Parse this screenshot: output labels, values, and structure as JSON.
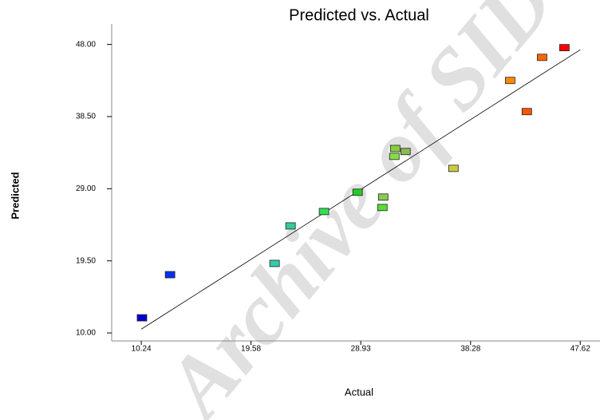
{
  "chart_data": {
    "type": "scatter",
    "title": "Predicted vs. Actual",
    "xlabel": "Actual",
    "ylabel": "Predicted",
    "watermark": "Archive of SID",
    "x": [
      10.3,
      12.69,
      21.59,
      22.95,
      25.8,
      28.66,
      30.84,
      30.77,
      31.86,
      31.79,
      32.74,
      36.82,
      41.65,
      43.07,
      44.37,
      46.27
    ],
    "values": [
      12.0,
      17.68,
      19.16,
      24.1,
      26.0,
      28.53,
      27.9,
      26.53,
      34.3,
      33.26,
      33.9,
      31.68,
      43.26,
      39.16,
      46.3,
      47.58
    ],
    "colors": [
      "#0000cc",
      "#0033ee",
      "#33ccaa",
      "#33cc99",
      "#33dd55",
      "#22cc22",
      "#88cc55",
      "#55dd33",
      "#88cc44",
      "#88dd44",
      "#88bb55",
      "#cccc44",
      "#ff8800",
      "#ff5500",
      "#ff6600",
      "#ff0000"
    ],
    "reference_line": {
      "x": [
        10.24,
        47.62
      ],
      "y": [
        10.5,
        47.3
      ],
      "color": "#000000"
    },
    "xlim": [
      8.4,
      49.3
    ],
    "ylim": [
      8.95,
      50.7
    ],
    "xticks": [
      10.24,
      19.58,
      28.93,
      38.28,
      47.62
    ],
    "yticks": [
      {
        "value": 10,
        "label": "10.00"
      },
      {
        "value": 19.5,
        "label": "19.50"
      },
      {
        "value": 29,
        "label": "29.00"
      },
      {
        "value": 38.5,
        "label": "38.50"
      },
      {
        "value": 48,
        "label": "48.00"
      }
    ]
  }
}
